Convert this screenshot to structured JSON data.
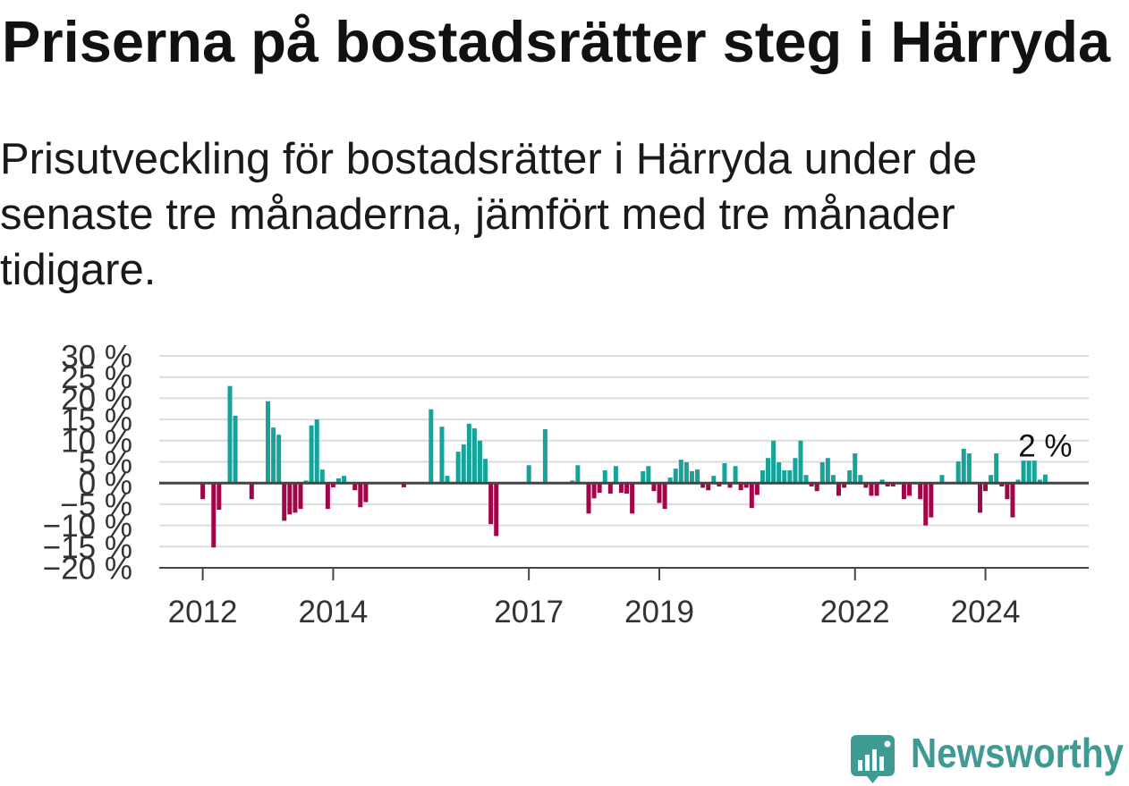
{
  "chart_data": {
    "type": "bar",
    "title": "Priserna på bostadsrätter steg i Härryda",
    "subtitle": "Prisutveckling för bostadsrätter i Härryda under de senaste tre månaderna, jämfört med tre månader tidigare.",
    "ylim": [
      -20,
      30
    ],
    "xlim": [
      "2011-05",
      "2025-08"
    ],
    "grid": true,
    "y_ticks": [
      30,
      25,
      20,
      15,
      10,
      5,
      0,
      -5,
      -10,
      -15,
      -20
    ],
    "y_tick_labels": [
      "30 %",
      "25 %",
      "20 %",
      "15 %",
      "10 %",
      "5 %",
      "0 %",
      "−5 %",
      "−10 %",
      "−15 %",
      "−20 %"
    ],
    "x_tick_labels": [
      "2012",
      "2014",
      "2017",
      "2019",
      "2022",
      "2024"
    ],
    "positive_color": "#15a39a",
    "negative_color": "#a2064a",
    "x": [
      "2012-01",
      "2012-03",
      "2012-04",
      "2012-06",
      "2012-07",
      "2012-10",
      "2013-01",
      "2013-02",
      "2013-03",
      "2013-04",
      "2013-05",
      "2013-06",
      "2013-07",
      "2013-08",
      "2013-09",
      "2013-10",
      "2013-11",
      "2013-12",
      "2014-01",
      "2014-02",
      "2014-03",
      "2014-05",
      "2014-06",
      "2014-07",
      "2015-02",
      "2015-07",
      "2015-09",
      "2015-10",
      "2015-12",
      "2016-01",
      "2016-02",
      "2016-03",
      "2016-04",
      "2016-05",
      "2016-06",
      "2016-07",
      "2017-01",
      "2017-04",
      "2017-09",
      "2017-10",
      "2017-12",
      "2018-01",
      "2018-02",
      "2018-03",
      "2018-04",
      "2018-05",
      "2018-06",
      "2018-07",
      "2018-08",
      "2018-10",
      "2018-11",
      "2018-12",
      "2019-01",
      "2019-02",
      "2019-03",
      "2019-04",
      "2019-05",
      "2019-06",
      "2019-07",
      "2019-08",
      "2019-09",
      "2019-10",
      "2019-11",
      "2019-12",
      "2020-01",
      "2020-02",
      "2020-03",
      "2020-04",
      "2020-05",
      "2020-06",
      "2020-07",
      "2020-08",
      "2020-09",
      "2020-10",
      "2020-11",
      "2020-12",
      "2021-01",
      "2021-02",
      "2021-03",
      "2021-04",
      "2021-05",
      "2021-06",
      "2021-07",
      "2021-08",
      "2021-09",
      "2021-10",
      "2021-11",
      "2021-12",
      "2022-01",
      "2022-02",
      "2022-03",
      "2022-04",
      "2022-05",
      "2022-06",
      "2022-07",
      "2022-08",
      "2022-10",
      "2022-11",
      "2023-01",
      "2023-02",
      "2023-03",
      "2023-05",
      "2023-08",
      "2023-09",
      "2023-10",
      "2023-12",
      "2024-01",
      "2024-02",
      "2024-03",
      "2024-04",
      "2024-05",
      "2024-06",
      "2024-07",
      "2024-08",
      "2024-09",
      "2024-10",
      "2024-11",
      "2024-12"
    ],
    "values": [
      -3.8,
      -15.2,
      -6.3,
      22.9,
      15.9,
      -3.8,
      19.3,
      13.1,
      11.4,
      -8.9,
      -7.4,
      -7.0,
      -6.1,
      0.6,
      13.6,
      15.0,
      3.2,
      -6.1,
      -1.0,
      1.1,
      1.7,
      -1.7,
      -5.7,
      -4.5,
      -1.0,
      17.4,
      13.3,
      1.7,
      7.4,
      9.1,
      14.0,
      12.9,
      10.0,
      5.7,
      -9.7,
      -12.5,
      4.2,
      12.7,
      0.6,
      4.2,
      -7.2,
      -3.6,
      -2.3,
      3.0,
      -2.5,
      4.0,
      -2.3,
      -2.5,
      -7.2,
      2.8,
      4.0,
      -1.9,
      -4.7,
      -6.1,
      1.3,
      3.4,
      5.5,
      4.9,
      2.8,
      3.2,
      -1.1,
      -1.7,
      1.7,
      -0.8,
      4.7,
      -1.1,
      4.0,
      -1.7,
      -1.1,
      -5.9,
      -2.8,
      3.0,
      5.9,
      10.0,
      4.9,
      3.0,
      3.0,
      5.9,
      10.0,
      1.9,
      -0.8,
      -1.9,
      4.9,
      5.9,
      1.9,
      -3.0,
      -1.1,
      3.0,
      7.0,
      1.9,
      -1.1,
      -3.0,
      -3.0,
      0.8,
      -0.8,
      -0.8,
      -3.8,
      -3.0,
      -3.8,
      -10.0,
      -8.1,
      1.9,
      5.1,
      8.1,
      7.0,
      -7.0,
      -1.9,
      1.9,
      7.0,
      -0.8,
      -3.8,
      -8.1,
      0.8,
      5.3,
      5.3,
      5.3,
      0.8,
      2.0
    ],
    "annotation": {
      "x": "2024-12",
      "y": 2,
      "text": "2 %"
    }
  },
  "brand": {
    "name": "Newsworthy",
    "color": "#3d9b93",
    "icon": "bar-chart-badge-icon"
  }
}
